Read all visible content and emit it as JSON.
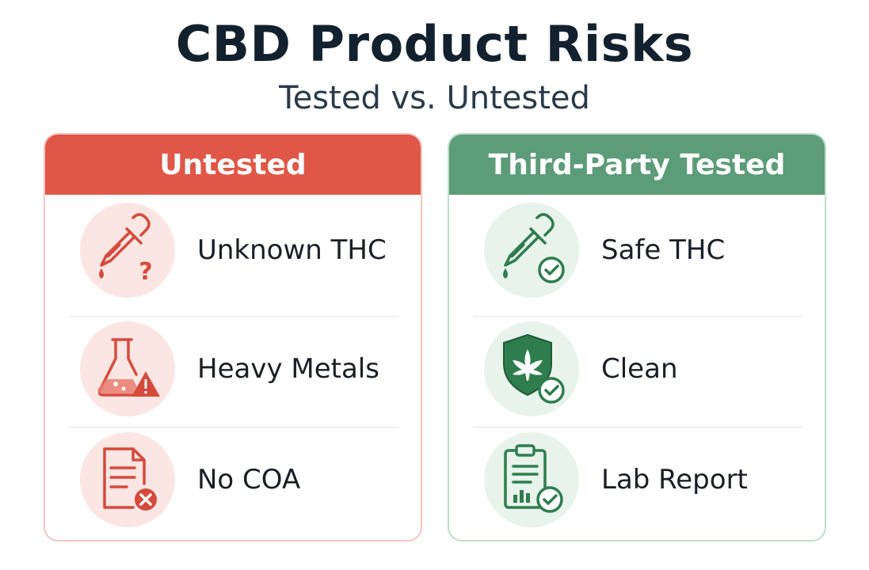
{
  "title": "CBD Product Risks",
  "subtitle": "Tested vs. Untested",
  "colors": {
    "untested_accent": "#e05748",
    "tested_accent": "#5c9c78",
    "title_text": "#13212e"
  },
  "panels": [
    {
      "header": "Untested",
      "items": [
        {
          "label": "Unknown THC",
          "icon": "dropper-question-icon"
        },
        {
          "label": "Heavy Metals",
          "icon": "flask-warning-icon"
        },
        {
          "label": "No COA",
          "icon": "document-x-icon"
        }
      ]
    },
    {
      "header": "Third-Party Tested",
      "items": [
        {
          "label": "Safe THC",
          "icon": "dropper-check-icon"
        },
        {
          "label": "Clean",
          "icon": "shield-leaf-check-icon"
        },
        {
          "label": "Lab Report",
          "icon": "clipboard-chart-check-icon"
        }
      ]
    }
  ]
}
